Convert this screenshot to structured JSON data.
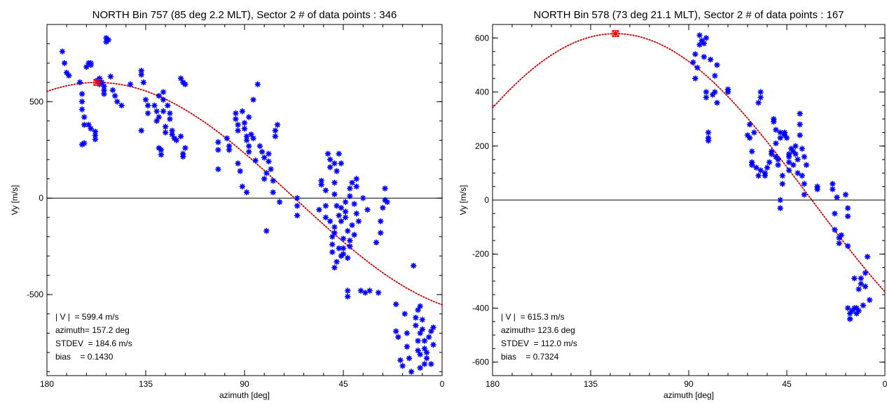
{
  "chart_data": [
    {
      "type": "scatter",
      "title": "NORTH  Bin 757 (85 deg  2.2 MLT), Sector 2  # of data points : 346",
      "xlabel": "azimuth [deg]",
      "ylabel": "Vy [m/s]",
      "xlim": [
        180,
        0
      ],
      "ylim": [
        -920,
        900
      ],
      "xticks": [
        180,
        135,
        90,
        45,
        0
      ],
      "yticks": [
        500,
        0,
        -500
      ],
      "info": [
        "| V |  = 599.4 m/s",
        "azimuth= 157.2 deg",
        "STDEV  = 184.6 m/s",
        "bias    = 0.1430"
      ],
      "fit": {
        "amplitude": 599.4,
        "azimuth": 157.2,
        "bias": 0.143
      },
      "points": [
        [
          173,
          760
        ],
        [
          172,
          700
        ],
        [
          171,
          650
        ],
        [
          170,
          635
        ],
        [
          165,
          600
        ],
        [
          164,
          540
        ],
        [
          164,
          500
        ],
        [
          164,
          460
        ],
        [
          163,
          420
        ],
        [
          163,
          380
        ],
        [
          163,
          285
        ],
        [
          164,
          278
        ],
        [
          162,
          680
        ],
        [
          161,
          700
        ],
        [
          160,
          700
        ],
        [
          160,
          690
        ],
        [
          161,
          380
        ],
        [
          160,
          360
        ],
        [
          158,
          345
        ],
        [
          158,
          325
        ],
        [
          158,
          305
        ],
        [
          157,
          610
        ],
        [
          156,
          620
        ],
        [
          156,
          590
        ],
        [
          155,
          600
        ],
        [
          154,
          580
        ],
        [
          154,
          560
        ],
        [
          153,
          830
        ],
        [
          153,
          810
        ],
        [
          152,
          820
        ],
        [
          154,
          540
        ],
        [
          151,
          630
        ],
        [
          150,
          560
        ],
        [
          149,
          530
        ],
        [
          148,
          500
        ],
        [
          146,
          480
        ],
        [
          142,
          590
        ],
        [
          137,
          660
        ],
        [
          137,
          640
        ],
        [
          136,
          600
        ],
        [
          137,
          350
        ],
        [
          135,
          510
        ],
        [
          134,
          480
        ],
        [
          134,
          440
        ],
        [
          131,
          480
        ],
        [
          130,
          450
        ],
        [
          130,
          400
        ],
        [
          129,
          530
        ],
        [
          129,
          420
        ],
        [
          129,
          260
        ],
        [
          128,
          250
        ],
        [
          128,
          225
        ],
        [
          127,
          550
        ],
        [
          127,
          510
        ],
        [
          127,
          450
        ],
        [
          126,
          370
        ],
        [
          126,
          340
        ],
        [
          125,
          480
        ],
        [
          124,
          440
        ],
        [
          124,
          410
        ],
        [
          123,
          350
        ],
        [
          123,
          330
        ],
        [
          122,
          310
        ],
        [
          121,
          300
        ],
        [
          119,
          320
        ],
        [
          119,
          620
        ],
        [
          118,
          600
        ],
        [
          117,
          590
        ],
        [
          117,
          260
        ],
        [
          118,
          230
        ],
        [
          118,
          215
        ],
        [
          102,
          290
        ],
        [
          102,
          250
        ],
        [
          102,
          150
        ],
        [
          98,
          310
        ],
        [
          97,
          270
        ],
        [
          97,
          250
        ],
        [
          94,
          440
        ],
        [
          94,
          410
        ],
        [
          93,
          380
        ],
        [
          93,
          350
        ],
        [
          93,
          180
        ],
        [
          92,
          140
        ],
        [
          91,
          60
        ],
        [
          91,
          450
        ],
        [
          90,
          390
        ],
        [
          90,
          360
        ],
        [
          89,
          300
        ],
        [
          89,
          320
        ],
        [
          89,
          30
        ],
        [
          88,
          270
        ],
        [
          88,
          240
        ],
        [
          88,
          420
        ],
        [
          87,
          330
        ],
        [
          86,
          310
        ],
        [
          86,
          510
        ],
        [
          85,
          195
        ],
        [
          84,
          590
        ],
        [
          83,
          270
        ],
        [
          82,
          240
        ],
        [
          81,
          210
        ],
        [
          81,
          100
        ],
        [
          80,
          130
        ],
        [
          80,
          -170
        ],
        [
          79,
          230
        ],
        [
          79,
          190
        ],
        [
          78,
          150
        ],
        [
          77,
          90
        ],
        [
          77,
          30
        ],
        [
          76,
          350
        ],
        [
          76,
          320
        ],
        [
          75,
          380
        ],
        [
          74,
          -20
        ],
        [
          66,
          0
        ],
        [
          66,
          -40
        ],
        [
          66,
          -90
        ],
        [
          56,
          -60
        ],
        [
          55,
          90
        ],
        [
          55,
          70
        ],
        [
          53,
          40
        ],
        [
          53,
          -40
        ],
        [
          53,
          -100
        ],
        [
          52,
          230
        ],
        [
          51,
          200
        ],
        [
          51,
          160
        ],
        [
          51,
          -120
        ],
        [
          50,
          -200
        ],
        [
          50,
          -240
        ],
        [
          50,
          -280
        ],
        [
          49,
          180
        ],
        [
          49,
          80
        ],
        [
          49,
          20
        ],
        [
          49,
          -150
        ],
        [
          49,
          -180
        ],
        [
          49,
          -360
        ],
        [
          48,
          140
        ],
        [
          48,
          -40
        ],
        [
          48,
          -330
        ],
        [
          47,
          -90
        ],
        [
          47,
          -260
        ],
        [
          47,
          230
        ],
        [
          46,
          180
        ],
        [
          46,
          -50
        ],
        [
          46,
          -120
        ],
        [
          46,
          -300
        ],
        [
          45,
          -210
        ],
        [
          45,
          -260
        ],
        [
          45,
          -290
        ],
        [
          44,
          -20
        ],
        [
          44,
          -70
        ],
        [
          44,
          -100
        ],
        [
          43,
          -170
        ],
        [
          43,
          -310
        ],
        [
          43,
          -480
        ],
        [
          43,
          -510
        ],
        [
          42,
          50
        ],
        [
          42,
          10
        ],
        [
          42,
          -220
        ],
        [
          42,
          -250
        ],
        [
          41,
          80
        ],
        [
          41,
          -140
        ],
        [
          40,
          -30
        ],
        [
          40,
          -190
        ],
        [
          39,
          100
        ],
        [
          39,
          60
        ],
        [
          39,
          -80
        ],
        [
          38,
          -120
        ],
        [
          37,
          -480
        ],
        [
          36,
          0
        ],
        [
          35,
          -490
        ],
        [
          34,
          -60
        ],
        [
          33,
          -480
        ],
        [
          30,
          -230
        ],
        [
          29,
          -490
        ],
        [
          28,
          -120
        ],
        [
          28,
          -180
        ],
        [
          27,
          -50
        ],
        [
          26,
          50
        ],
        [
          26,
          -10
        ],
        [
          25,
          -20
        ],
        [
          21,
          -550
        ],
        [
          21,
          -690
        ],
        [
          20,
          -720
        ],
        [
          19,
          -840
        ],
        [
          18,
          -870
        ],
        [
          17,
          -600
        ],
        [
          16,
          -700
        ],
        [
          16,
          -770
        ],
        [
          15,
          -830
        ],
        [
          14,
          -900
        ],
        [
          13,
          -350
        ],
        [
          12,
          -620
        ],
        [
          12,
          -660
        ],
        [
          11,
          -580
        ],
        [
          11,
          -740
        ],
        [
          11,
          -790
        ],
        [
          10,
          -560
        ],
        [
          10,
          -700
        ],
        [
          10,
          -810
        ],
        [
          10,
          -880
        ],
        [
          9,
          -630
        ],
        [
          9,
          -680
        ],
        [
          8,
          -740
        ],
        [
          8,
          -780
        ],
        [
          8,
          -860
        ],
        [
          7,
          -800
        ],
        [
          7,
          -830
        ],
        [
          6,
          -720
        ],
        [
          5,
          -690
        ],
        [
          5,
          -860
        ],
        [
          4,
          -670
        ],
        [
          4,
          -760
        ]
      ]
    },
    {
      "type": "scatter",
      "title": "NORTH  Bin 578 (73 deg  21.1 MLT), Sector 2  # of data points : 167",
      "xlabel": "azimuth [deg]",
      "ylabel": "Vy [m/s]",
      "xlim": [
        180,
        0
      ],
      "ylim": [
        -650,
        650
      ],
      "xticks": [
        180,
        135,
        90,
        45,
        0
      ],
      "yticks": [
        600,
        400,
        200,
        0,
        -200,
        -400,
        -600
      ],
      "info": [
        "| V |  = 615.3 m/s",
        "azimuth= 123.6 deg",
        "STDEV  = 112.0 m/s",
        "bias    = 0.7324"
      ],
      "fit": {
        "amplitude": 615.3,
        "azimuth": 123.6,
        "bias": 0.7324
      },
      "points": [
        [
          88,
          510
        ],
        [
          87,
          450
        ],
        [
          87,
          540
        ],
        [
          86,
          490
        ],
        [
          85,
          610
        ],
        [
          85,
          575
        ],
        [
          84,
          590
        ],
        [
          83,
          580
        ],
        [
          83,
          530
        ],
        [
          82,
          600
        ],
        [
          82,
          400
        ],
        [
          82,
          380
        ],
        [
          81,
          250
        ],
        [
          81,
          230
        ],
        [
          81,
          220
        ],
        [
          80,
          520
        ],
        [
          79,
          390
        ],
        [
          78,
          400
        ],
        [
          78,
          460
        ],
        [
          77,
          500
        ],
        [
          77,
          360
        ],
        [
          72,
          410
        ],
        [
          72,
          400
        ],
        [
          63,
          240
        ],
        [
          62,
          280
        ],
        [
          62,
          230
        ],
        [
          61,
          180
        ],
        [
          61,
          140
        ],
        [
          61,
          130
        ],
        [
          60,
          250
        ],
        [
          59,
          120
        ],
        [
          58,
          90
        ],
        [
          58,
          360
        ],
        [
          57,
          400
        ],
        [
          57,
          380
        ],
        [
          57,
          110
        ],
        [
          55,
          90
        ],
        [
          55,
          100
        ],
        [
          54,
          120
        ],
        [
          53,
          140
        ],
        [
          52,
          180
        ],
        [
          52,
          170
        ],
        [
          51,
          290
        ],
        [
          51,
          300
        ],
        [
          50,
          260
        ],
        [
          50,
          210
        ],
        [
          50,
          160
        ],
        [
          49,
          150
        ],
        [
          49,
          130
        ],
        [
          48,
          250
        ],
        [
          48,
          230
        ],
        [
          48,
          -30
        ],
        [
          48,
          0
        ],
        [
          47,
          60
        ],
        [
          47,
          90
        ],
        [
          46,
          250
        ],
        [
          46,
          240
        ],
        [
          45,
          230
        ],
        [
          44,
          170
        ],
        [
          44,
          160
        ],
        [
          44,
          140
        ],
        [
          44,
          110
        ],
        [
          43,
          190
        ],
        [
          42,
          130
        ],
        [
          42,
          180
        ],
        [
          41,
          200
        ],
        [
          41,
          170
        ],
        [
          40,
          100
        ],
        [
          40,
          150
        ],
        [
          39,
          320
        ],
        [
          39,
          280
        ],
        [
          39,
          240
        ],
        [
          38,
          190
        ],
        [
          38,
          90
        ],
        [
          37,
          60
        ],
        [
          37,
          20
        ],
        [
          37,
          160
        ],
        [
          36,
          130
        ],
        [
          31,
          50
        ],
        [
          31,
          40
        ],
        [
          24,
          40
        ],
        [
          24,
          60
        ],
        [
          23,
          -50
        ],
        [
          23,
          -110
        ],
        [
          22,
          10
        ],
        [
          21,
          -160
        ],
        [
          21,
          -140
        ],
        [
          20,
          -130
        ],
        [
          18,
          20
        ],
        [
          17,
          -30
        ],
        [
          17,
          -60
        ],
        [
          17,
          -170
        ],
        [
          17,
          -400
        ],
        [
          16,
          -440
        ],
        [
          16,
          -420
        ],
        [
          16,
          -440
        ],
        [
          15,
          -410
        ],
        [
          14,
          -400
        ],
        [
          14,
          -290
        ],
        [
          13,
          -400
        ],
        [
          13,
          -420
        ],
        [
          12,
          -410
        ],
        [
          12,
          -330
        ],
        [
          11,
          -290
        ],
        [
          11,
          -310
        ],
        [
          10,
          -390
        ],
        [
          9,
          -320
        ],
        [
          9,
          -270
        ],
        [
          8,
          -210
        ],
        [
          7,
          -370
        ]
      ]
    }
  ]
}
